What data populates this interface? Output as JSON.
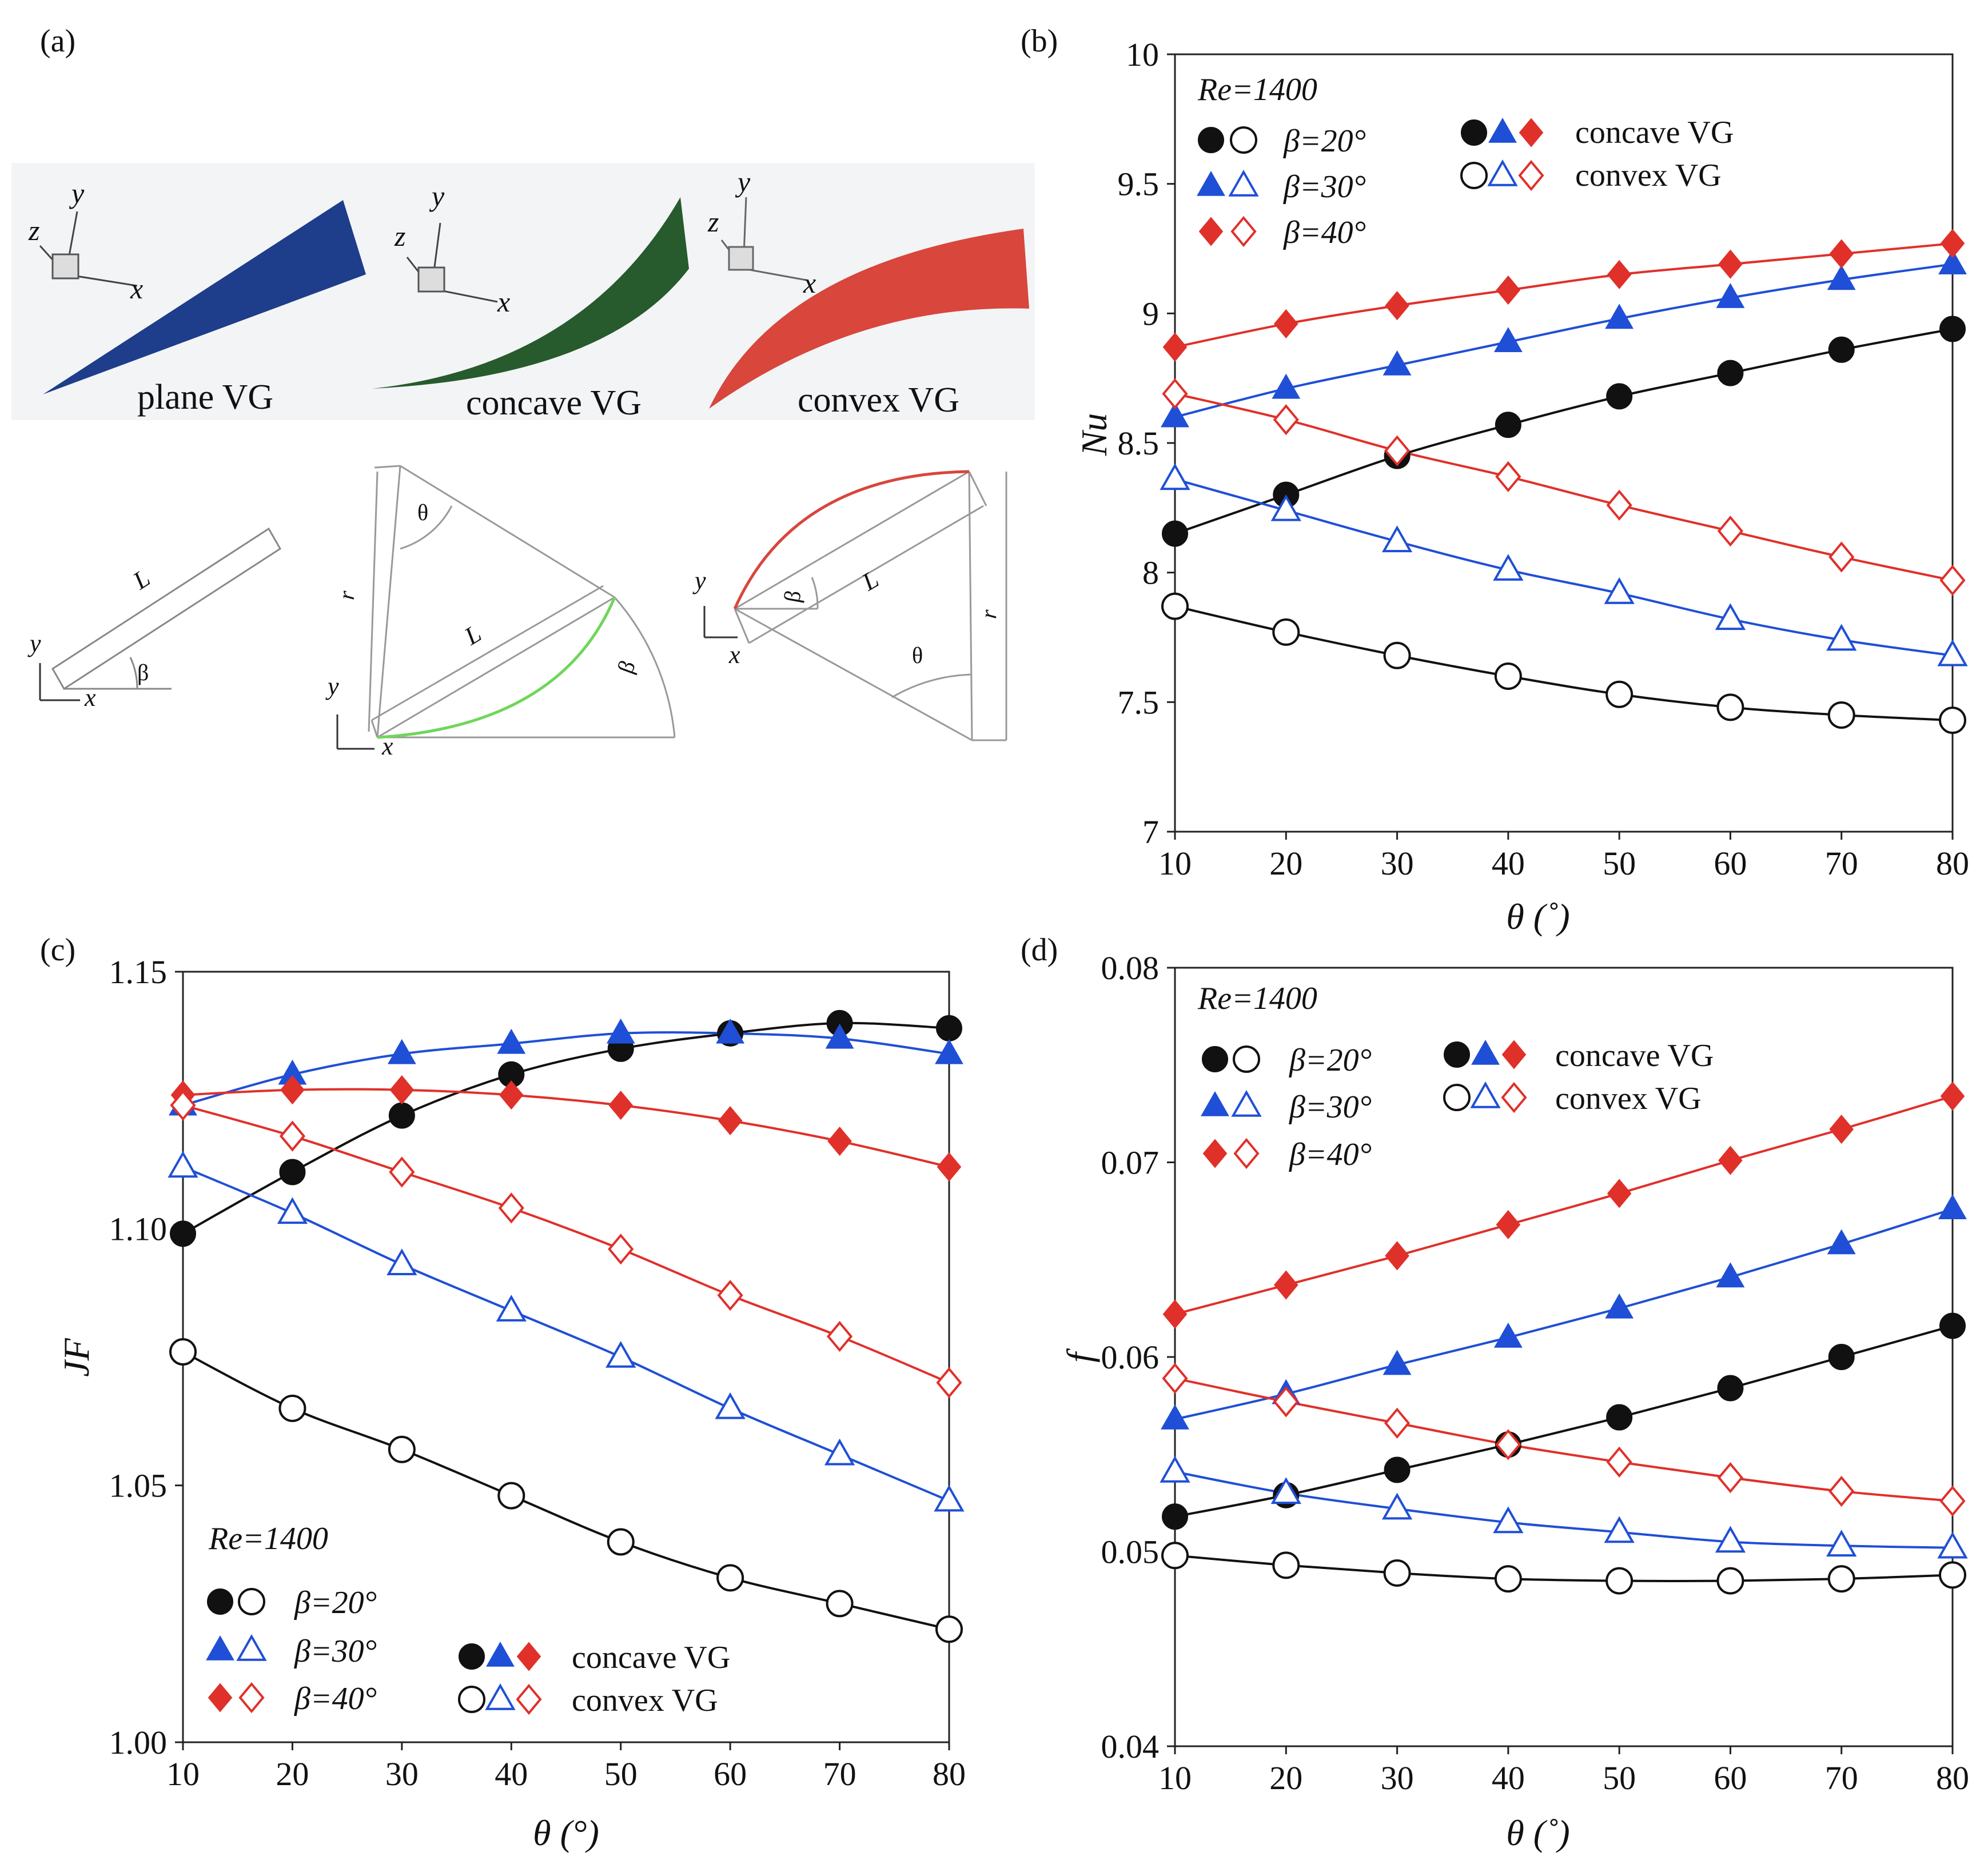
{
  "panel_a": {
    "label": "(a)",
    "names": [
      "plane VG",
      "concave VG",
      "convex VG"
    ],
    "colors": [
      "#1e3d8a",
      "#275a2d",
      "#d8463c"
    ],
    "axis_x": "x",
    "axis_y": "y",
    "axis_z": "z",
    "sym_L": "L",
    "sym_r": "r",
    "sym_beta": "β",
    "sym_theta": "θ"
  },
  "legend_text": {
    "re": "Re=1400",
    "beta20": "β=20°",
    "beta30": "β=30°",
    "beta40": "β=40°",
    "concave": "concave VG",
    "convex": "convex VG"
  },
  "colors": {
    "b20": "#111111",
    "b30": "#1f4fd6",
    "b40": "#e0302a"
  },
  "chart_data": [
    {
      "id": "b",
      "panel_label": "(b)",
      "type": "line",
      "xlabel": "θ (˚)",
      "ylabel": "Nu",
      "xlim": [
        10,
        80
      ],
      "ylim": [
        7,
        10
      ],
      "xticks": [
        10,
        20,
        30,
        40,
        50,
        60,
        70,
        80
      ],
      "yticks": [
        7,
        7.5,
        8,
        8.5,
        9,
        9.5,
        10
      ],
      "ytick_labels": [
        "7",
        "7.5",
        "8",
        "8.5",
        "9",
        "9.5",
        "10"
      ],
      "x": [
        10,
        20,
        30,
        40,
        50,
        60,
        70,
        80
      ],
      "legend_position": "top-left",
      "series": [
        {
          "name": "β=20° concave VG",
          "beta": 20,
          "type": "concave",
          "values": [
            8.15,
            8.3,
            8.45,
            8.57,
            8.68,
            8.77,
            8.86,
            8.94
          ]
        },
        {
          "name": "β=30° concave VG",
          "beta": 30,
          "type": "concave",
          "values": [
            8.6,
            8.71,
            8.8,
            8.89,
            8.98,
            9.06,
            9.13,
            9.19
          ]
        },
        {
          "name": "β=40° concave VG",
          "beta": 40,
          "type": "concave",
          "values": [
            8.87,
            8.96,
            9.03,
            9.09,
            9.15,
            9.19,
            9.23,
            9.27
          ]
        },
        {
          "name": "β=20° convex VG",
          "beta": 20,
          "type": "convex",
          "values": [
            7.87,
            7.77,
            7.68,
            7.6,
            7.53,
            7.48,
            7.45,
            7.43
          ]
        },
        {
          "name": "β=30° convex VG",
          "beta": 30,
          "type": "convex",
          "values": [
            8.36,
            8.24,
            8.12,
            8.01,
            7.92,
            7.82,
            7.74,
            7.68
          ]
        },
        {
          "name": "β=40° convex VG",
          "beta": 40,
          "type": "convex",
          "values": [
            8.69,
            8.59,
            8.47,
            8.37,
            8.26,
            8.16,
            8.06,
            7.97
          ]
        }
      ]
    },
    {
      "id": "c",
      "panel_label": "(c)",
      "type": "line",
      "xlabel": "θ (°)",
      "ylabel": "JF",
      "xlim": [
        10,
        80
      ],
      "ylim": [
        1.0,
        1.15
      ],
      "xticks": [
        10,
        20,
        30,
        40,
        50,
        60,
        70,
        80
      ],
      "yticks": [
        1.0,
        1.05,
        1.1,
        1.15
      ],
      "ytick_labels": [
        "1.00",
        "1.05",
        "1.10",
        "1.15"
      ],
      "x": [
        10,
        20,
        30,
        40,
        50,
        60,
        70,
        80
      ],
      "legend_position": "bottom-left",
      "series": [
        {
          "name": "β=20° concave VG",
          "beta": 20,
          "type": "concave",
          "values": [
            1.099,
            1.111,
            1.122,
            1.13,
            1.135,
            1.138,
            1.14,
            1.139
          ]
        },
        {
          "name": "β=30° concave VG",
          "beta": 30,
          "type": "concave",
          "values": [
            1.124,
            1.13,
            1.134,
            1.136,
            1.138,
            1.138,
            1.137,
            1.134
          ]
        },
        {
          "name": "β=40° concave VG",
          "beta": 40,
          "type": "concave",
          "values": [
            1.126,
            1.127,
            1.127,
            1.126,
            1.124,
            1.121,
            1.117,
            1.112
          ]
        },
        {
          "name": "β=20° convex VG",
          "beta": 20,
          "type": "convex",
          "values": [
            1.076,
            1.065,
            1.057,
            1.048,
            1.039,
            1.032,
            1.027,
            1.022
          ]
        },
        {
          "name": "β=30° convex VG",
          "beta": 30,
          "type": "convex",
          "values": [
            1.112,
            1.103,
            1.093,
            1.084,
            1.075,
            1.065,
            1.056,
            1.047
          ]
        },
        {
          "name": "β=40° convex VG",
          "beta": 40,
          "type": "convex",
          "values": [
            1.124,
            1.118,
            1.111,
            1.104,
            1.096,
            1.087,
            1.079,
            1.07
          ]
        }
      ]
    },
    {
      "id": "d",
      "panel_label": "(d)",
      "type": "line",
      "xlabel": "θ (˚)",
      "ylabel": "f",
      "xlim": [
        10,
        80
      ],
      "ylim": [
        0.04,
        0.08
      ],
      "xticks": [
        10,
        20,
        30,
        40,
        50,
        60,
        70,
        80
      ],
      "yticks": [
        0.04,
        0.05,
        0.06,
        0.07,
        0.08
      ],
      "ytick_labels": [
        "0.04",
        "0.05",
        "0.06",
        "0.07",
        "0.08"
      ],
      "x": [
        10,
        20,
        30,
        40,
        50,
        60,
        70,
        80
      ],
      "legend_position": "top-left",
      "series": [
        {
          "name": "β=20° concave VG",
          "beta": 20,
          "type": "concave",
          "values": [
            0.0518,
            0.0529,
            0.0542,
            0.0555,
            0.0569,
            0.0584,
            0.06,
            0.0616
          ]
        },
        {
          "name": "β=30° concave VG",
          "beta": 30,
          "type": "concave",
          "values": [
            0.0568,
            0.0581,
            0.0596,
            0.061,
            0.0625,
            0.0641,
            0.0658,
            0.0676
          ]
        },
        {
          "name": "β=40° concave VG",
          "beta": 40,
          "type": "concave",
          "values": [
            0.0622,
            0.0637,
            0.0652,
            0.0668,
            0.0684,
            0.0701,
            0.0717,
            0.0734
          ]
        },
        {
          "name": "β=20° convex VG",
          "beta": 20,
          "type": "convex",
          "values": [
            0.0498,
            0.0493,
            0.0489,
            0.0486,
            0.0485,
            0.0485,
            0.0486,
            0.0488
          ]
        },
        {
          "name": "β=30° convex VG",
          "beta": 30,
          "type": "convex",
          "values": [
            0.0541,
            0.053,
            0.0522,
            0.0515,
            0.051,
            0.0505,
            0.0503,
            0.0502
          ]
        },
        {
          "name": "β=40° convex VG",
          "beta": 40,
          "type": "convex",
          "values": [
            0.0589,
            0.0577,
            0.0566,
            0.0555,
            0.0546,
            0.0538,
            0.0531,
            0.0526
          ]
        }
      ]
    }
  ]
}
